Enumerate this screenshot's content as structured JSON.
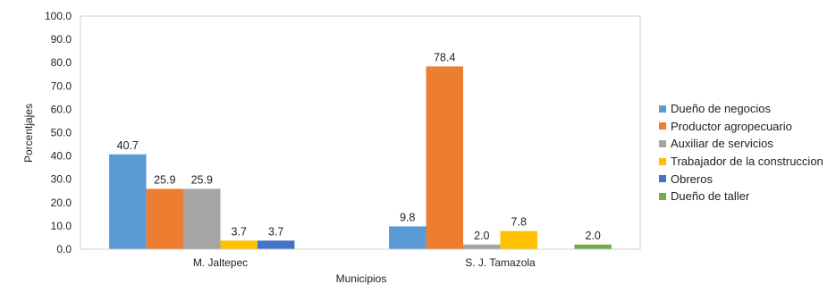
{
  "chart_data": {
    "type": "bar",
    "categories": [
      "M. Jaltepec",
      "S. J. Tamazola"
    ],
    "series": [
      {
        "name": "Dueño de negocios",
        "color": "#5B9BD5",
        "values": [
          40.7,
          9.8
        ]
      },
      {
        "name": "Productor agropecuario",
        "color": "#ED7D31",
        "values": [
          25.9,
          78.4
        ]
      },
      {
        "name": "Auxiliar de servicios",
        "color": "#A5A5A5",
        "values": [
          25.9,
          2.0
        ]
      },
      {
        "name": "Trabajador de la construccion",
        "color": "#FFC000",
        "values": [
          3.7,
          7.8
        ]
      },
      {
        "name": "Obreros",
        "color": "#4472C4",
        "values": [
          3.7,
          null
        ]
      },
      {
        "name": "Dueño de taller",
        "color": "#70AD47",
        "values": [
          null,
          2.0
        ]
      }
    ],
    "xlabel": "Municipios",
    "ylabel": "Porcentjajes",
    "ylim": [
      0,
      100
    ],
    "yticks": [
      "0.0",
      "10.0",
      "20.0",
      "30.0",
      "40.0",
      "50.0",
      "60.0",
      "70.0",
      "80.0",
      "90.0",
      "100.0"
    ],
    "grid": false,
    "legend_position": "right"
  }
}
